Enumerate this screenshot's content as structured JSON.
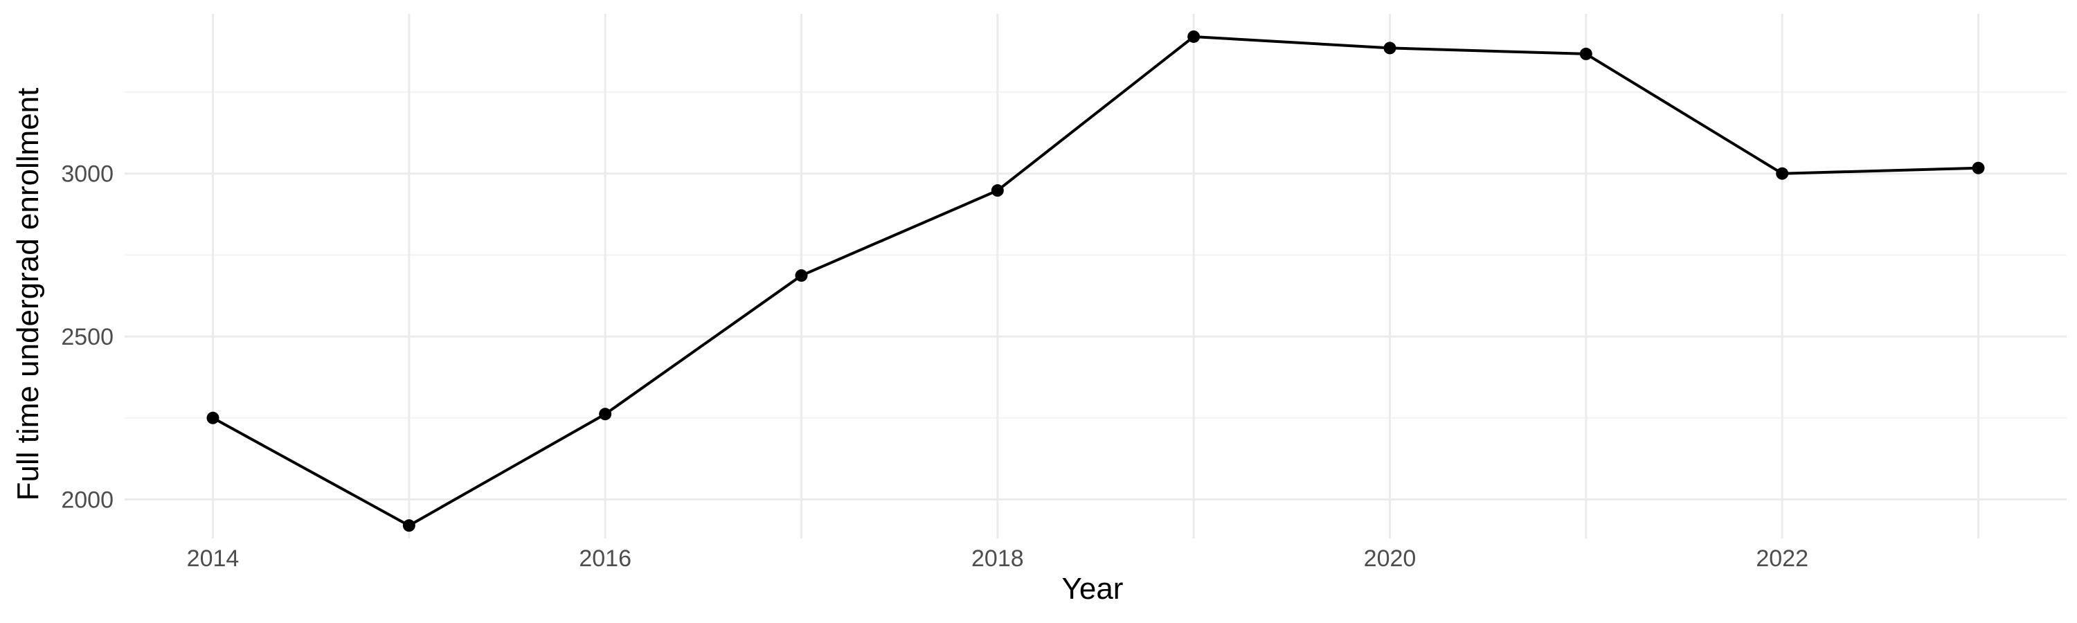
{
  "chart_data": {
    "type": "line",
    "title": "",
    "xlabel": "Year",
    "ylabel": "Full time undergrad enrollment",
    "x": [
      2014,
      2015,
      2016,
      2017,
      2018,
      2019,
      2020,
      2021,
      2022,
      2023
    ],
    "series": [
      {
        "values": [
          2250,
          1920,
          2262,
          2687,
          2948,
          3420,
          3385,
          3367,
          3000,
          3017
        ]
      }
    ],
    "xlim": [
      2013.55,
      2023.45
    ],
    "ylim": [
      1880,
      3490
    ],
    "x_ticks": [
      2014,
      2016,
      2018,
      2020,
      2022
    ],
    "x_tick_labels": [
      "2014",
      "2016",
      "2018",
      "2020",
      "2022"
    ],
    "y_ticks": [
      2000,
      2500,
      3000
    ],
    "y_tick_labels": [
      "2000",
      "2500",
      "3000"
    ],
    "grid": true,
    "legend": "none",
    "colors": {
      "line": "#000000",
      "point": "#000000",
      "grid_major": "#ebebeb",
      "grid_minor": "#f3f3f3",
      "tick_text": "#4d4d4d",
      "background": "#ffffff"
    }
  }
}
